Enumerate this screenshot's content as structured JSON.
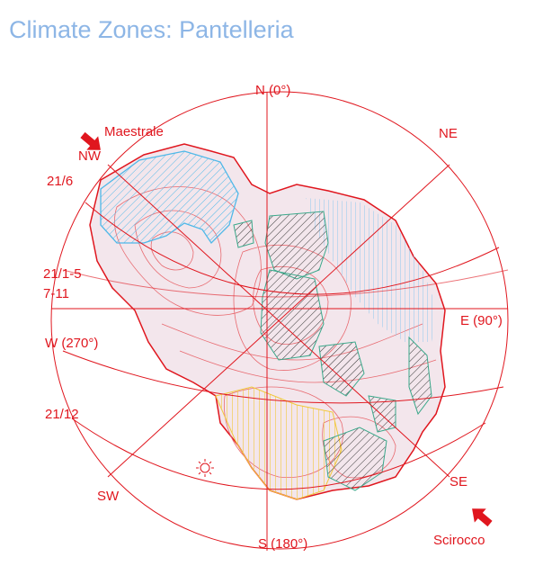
{
  "title": "Climate Zones: Pantelleria",
  "compass": {
    "north": "N (0°)",
    "northeast": "NE",
    "east": "E (90°)",
    "southeast": "SE",
    "south": "S (180°)",
    "southwest": "SW",
    "west": "W (270°)",
    "northwest": "NW"
  },
  "winds": {
    "northwest": "Maestrale",
    "southeast": "Scirocco"
  },
  "solar_dates": {
    "summer": "21/6",
    "equinox_1": "21/1-5",
    "equinox_2": "7-11",
    "winter": "21/12"
  },
  "colors": {
    "title": "#8db6e6",
    "lines": "#e0161e",
    "cool_zone": "#4fb8e8",
    "warm_zone": "#f2d23c",
    "dark_zone": "#333333",
    "island": "#f3e6ec"
  },
  "icons": [
    "wind-arrow-icon",
    "sun-icon"
  ]
}
